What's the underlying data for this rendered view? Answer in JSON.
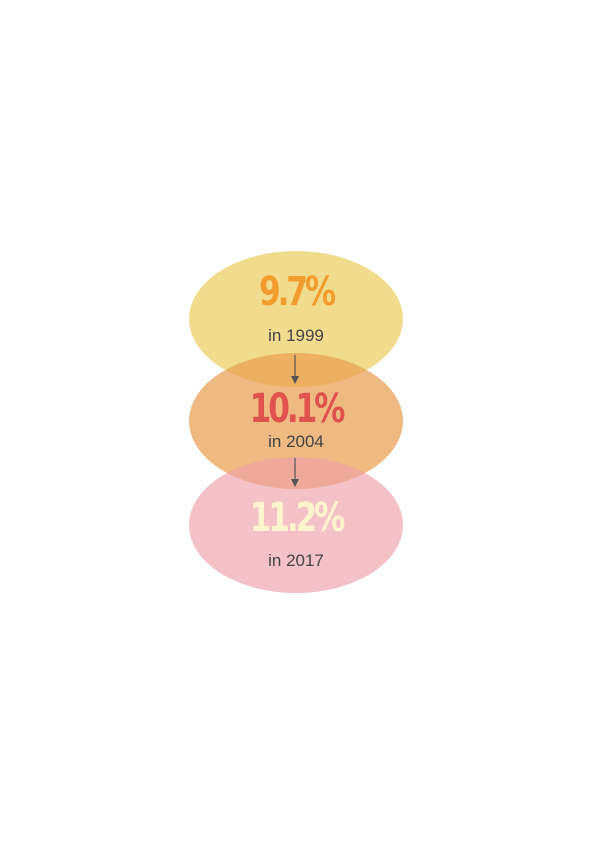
{
  "colors": {
    "circle_1": "rgba(235, 206, 98, 0.72)",
    "circle_2": "rgba(233, 160, 80, 0.72)",
    "circle_3": "rgba(236, 160, 168, 0.65)",
    "stat_1_color": "#f39b2c",
    "stat_2_color": "#e0524c",
    "stat_3_color": "#fff4cf",
    "year_color": "#444444",
    "arrow_color": "#555555"
  },
  "stages": [
    {
      "value": "9.7%",
      "year_label": "in 1999"
    },
    {
      "value": "10.1%",
      "year_label": "in 2004"
    },
    {
      "value": "11.2%",
      "year_label": "in 2017"
    }
  ]
}
